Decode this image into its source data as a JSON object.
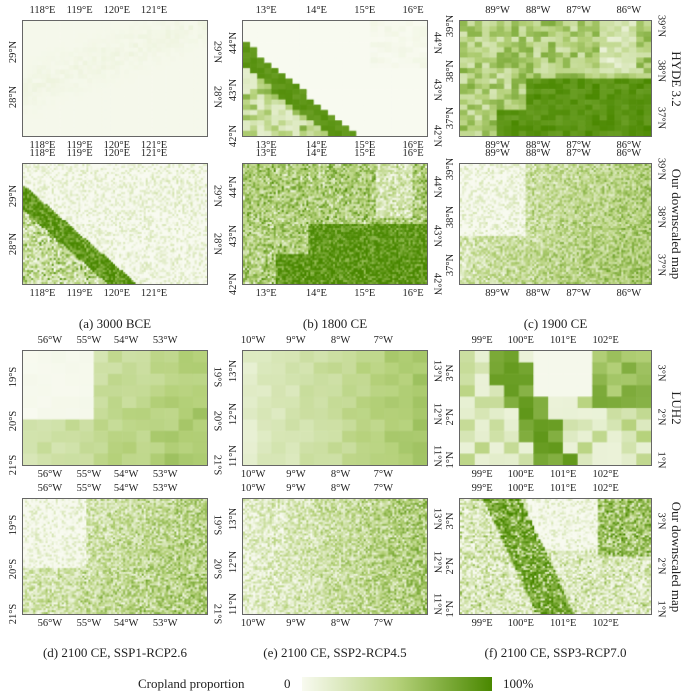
{
  "colorbar": {
    "label": "Cropland proportion",
    "min_label": "0",
    "max_label": "100%",
    "colors": [
      "#f8faf0",
      "#b5d17a",
      "#4a8800"
    ]
  },
  "row_labels": [
    "HYDE 3.2",
    "Our downscaled map",
    "LUH2",
    "Our downscaled map"
  ],
  "captions": [
    "(a) 3000 BCE",
    "(b) 1800 CE",
    "(c) 1900 CE",
    "(d) 2100 CE, SSP1-RCP2.6",
    "(e) 2100 CE, SSP2-RCP4.5",
    "(f) 2100 CE, SSP3-RCP7.0"
  ],
  "panels": [
    {
      "x_ticks": [
        "118°E",
        "119°E",
        "120°E",
        "121°E"
      ],
      "y_ticks": [
        "29°N",
        "28°N"
      ]
    },
    {
      "x_ticks": [
        "13°E",
        "14°E",
        "15°E",
        "16°E"
      ],
      "y_ticks": [
        "44°N",
        "43°N",
        "42°N"
      ]
    },
    {
      "x_ticks": [
        "89°W",
        "88°W",
        "87°W",
        "86°W"
      ],
      "y_ticks": [
        "39°N",
        "38°N",
        "37°N"
      ]
    },
    {
      "x_ticks": [
        "118°E",
        "119°E",
        "120°E",
        "121°E"
      ],
      "y_ticks": [
        "29°N",
        "28°N"
      ]
    },
    {
      "x_ticks": [
        "13°E",
        "14°E",
        "15°E",
        "16°E"
      ],
      "y_ticks": [
        "44°N",
        "43°N",
        "42°N"
      ]
    },
    {
      "x_ticks": [
        "89°W",
        "88°W",
        "87°W",
        "86°W"
      ],
      "y_ticks": [
        "39°N",
        "38°N",
        "37°N"
      ]
    },
    {
      "x_ticks": [
        "56°W",
        "55°W",
        "54°W",
        "53°W"
      ],
      "y_ticks": [
        "19°S",
        "20°S",
        "21°S"
      ]
    },
    {
      "x_ticks": [
        "10°W",
        "9°W",
        "8°W",
        "7°W"
      ],
      "y_ticks": [
        "13°N",
        "12°N",
        "11°N"
      ]
    },
    {
      "x_ticks": [
        "99°E",
        "100°E",
        "101°E",
        "102°E"
      ],
      "y_ticks": [
        "3°N",
        "2°N",
        "1°N"
      ]
    },
    {
      "x_ticks": [
        "56°W",
        "55°W",
        "54°W",
        "53°W"
      ],
      "y_ticks": [
        "19°S",
        "20°S",
        "21°S"
      ]
    },
    {
      "x_ticks": [
        "10°W",
        "9°W",
        "8°W",
        "7°W"
      ],
      "y_ticks": [
        "13°N",
        "12°N",
        "11°N"
      ]
    },
    {
      "x_ticks": [
        "99°E",
        "100°E",
        "101°E",
        "102°E"
      ],
      "y_ticks": [
        "3°N",
        "2°N",
        "1°N"
      ]
    }
  ]
}
